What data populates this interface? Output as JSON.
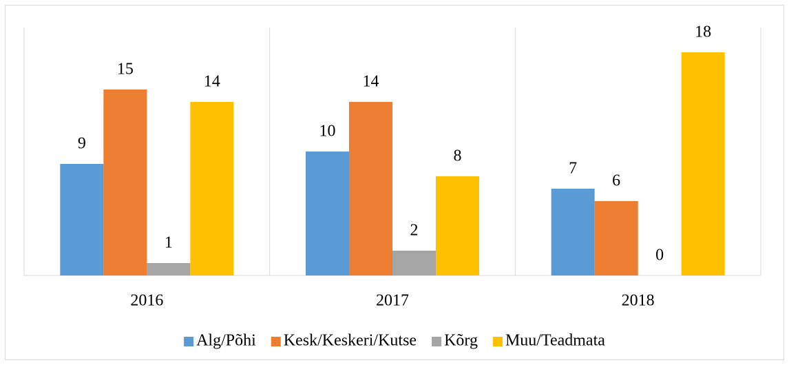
{
  "chart_data": {
    "type": "bar",
    "categories": [
      "2016",
      "2017",
      "2018"
    ],
    "series": [
      {
        "name": "Alg/Põhi",
        "color": "#5b9bd5",
        "values": [
          9,
          10,
          7
        ]
      },
      {
        "name": "Kesk/Keskeri/Kutse",
        "color": "#ed7d31",
        "values": [
          15,
          14,
          6
        ]
      },
      {
        "name": "Kõrg",
        "color": "#a5a5a5",
        "values": [
          1,
          2,
          0
        ]
      },
      {
        "name": "Muu/Teadmata",
        "color": "#ffc000",
        "values": [
          14,
          8,
          18
        ]
      }
    ],
    "ylim": [
      0,
      20
    ],
    "legend": "bottom",
    "grid": false
  }
}
